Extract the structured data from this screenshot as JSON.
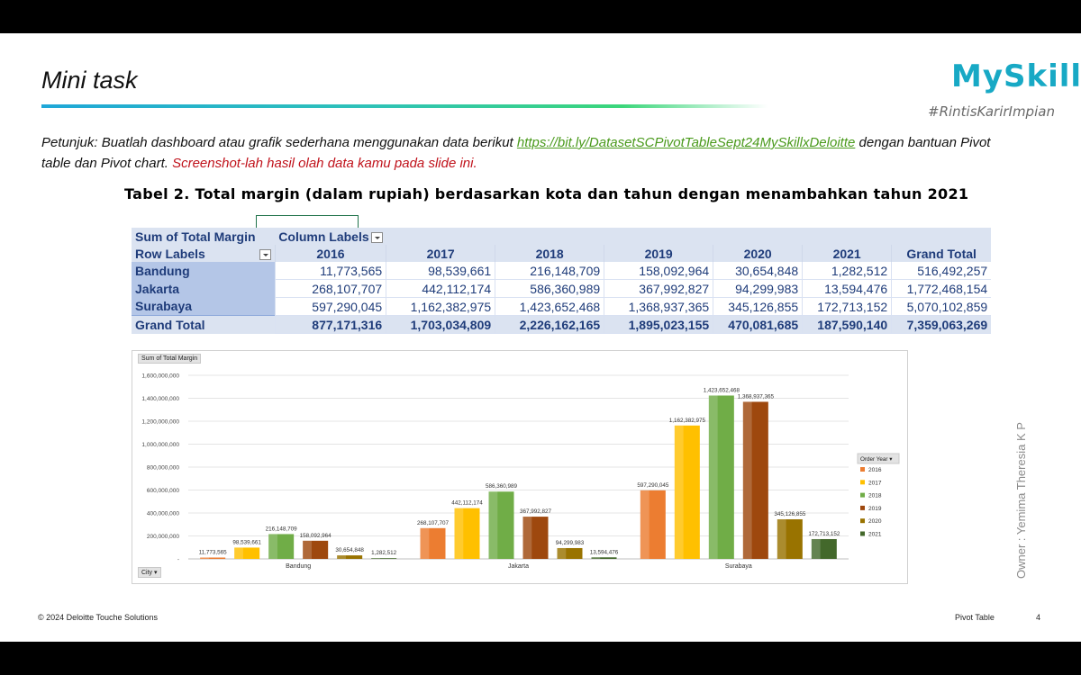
{
  "slide": {
    "title": "Mini task",
    "logo": {
      "name": "MySkill",
      "tagline": "#RintisKarirImpian"
    },
    "instructions": {
      "prefix": "Petunjuk: Buatlah dashboard atau grafik sederhana menggunakan data berikut ",
      "link": "https://bit.ly/DatasetSCPivotTableSept24MySkillxDeloitte",
      "middle": " dengan bantuan Pivot table dan Pivot chart. ",
      "emphasis": "Screenshot-lah hasil olah data kamu pada slide ini."
    },
    "table_title": "Tabel 2. Total margin (dalam rupiah) berdasarkan kota dan tahun dengan menambahkan tahun 2021",
    "owner": "Owner : Yemima Theresia K P",
    "footer": {
      "copyright": "© 2024 Deloitte Touche Solutions",
      "section": "Pivot Table",
      "page": "4"
    }
  },
  "pivot": {
    "measure": "Sum of Total Margin",
    "column_labels": "Column Labels",
    "row_labels": "Row Labels",
    "years": [
      "2016",
      "2017",
      "2018",
      "2019",
      "2020",
      "2021"
    ],
    "grand_total_label": "Grand Total",
    "rows": [
      {
        "label": "Bandung",
        "values": [
          "11,773,565",
          "98,539,661",
          "216,148,709",
          "158,092,964",
          "30,654,848",
          "1,282,512"
        ],
        "total": "516,492,257"
      },
      {
        "label": "Jakarta",
        "values": [
          "268,107,707",
          "442,112,174",
          "586,360,989",
          "367,992,827",
          "94,299,983",
          "13,594,476"
        ],
        "total": "1,772,468,154"
      },
      {
        "label": "Surabaya",
        "values": [
          "597,290,045",
          "1,162,382,975",
          "1,423,652,468",
          "1,368,937,365",
          "345,126,855",
          "172,713,152"
        ],
        "total": "5,070,102,859"
      }
    ],
    "grand_total": {
      "values": [
        "877,171,316",
        "1,703,034,809",
        "2,226,162,165",
        "1,895,023,155",
        "470,081,685",
        "187,590,140"
      ],
      "total": "7,359,063,269"
    }
  },
  "chart_data": {
    "type": "bar",
    "field_button": "Sum of Total Margin",
    "legend_title": "Order Year",
    "axis_button": "City",
    "categories": [
      "Bandung",
      "Jakarta",
      "Surabaya"
    ],
    "ylim": [
      0,
      1600000000
    ],
    "yticks": [
      "-",
      "200,000,000",
      "400,000,000",
      "600,000,000",
      "800,000,000",
      "1,000,000,000",
      "1,200,000,000",
      "1,400,000,000",
      "1,600,000,000"
    ],
    "legend": "right",
    "grid": true,
    "colors": [
      "#ec7d31",
      "#ffc000",
      "#70ad47",
      "#9e480e",
      "#997300",
      "#43682b"
    ],
    "series": [
      {
        "name": "2016",
        "values": [
          11773565,
          268107707,
          597290045
        ],
        "labels": [
          "11,773,565",
          "268,107,707",
          "597,290,045"
        ]
      },
      {
        "name": "2017",
        "values": [
          98539661,
          442112174,
          1162382975
        ],
        "labels": [
          "98,539,661",
          "442,112,174",
          "1,162,382,975"
        ]
      },
      {
        "name": "2018",
        "values": [
          216148709,
          586360989,
          1423652468
        ],
        "labels": [
          "216,148,709",
          "586,360,989",
          "1,423,652,468"
        ]
      },
      {
        "name": "2019",
        "values": [
          158092964,
          367992827,
          1368937365
        ],
        "labels": [
          "158,092,964",
          "367,992,827",
          "1,368,937,365"
        ]
      },
      {
        "name": "2020",
        "values": [
          30654848,
          94299983,
          345126855
        ],
        "labels": [
          "30,654,848",
          "94,299,983",
          "345,126,855"
        ]
      },
      {
        "name": "2021",
        "values": [
          1282512,
          13594476,
          172713152
        ],
        "labels": [
          "1,282,512",
          "13,594,476",
          "172,713,152"
        ]
      }
    ]
  }
}
